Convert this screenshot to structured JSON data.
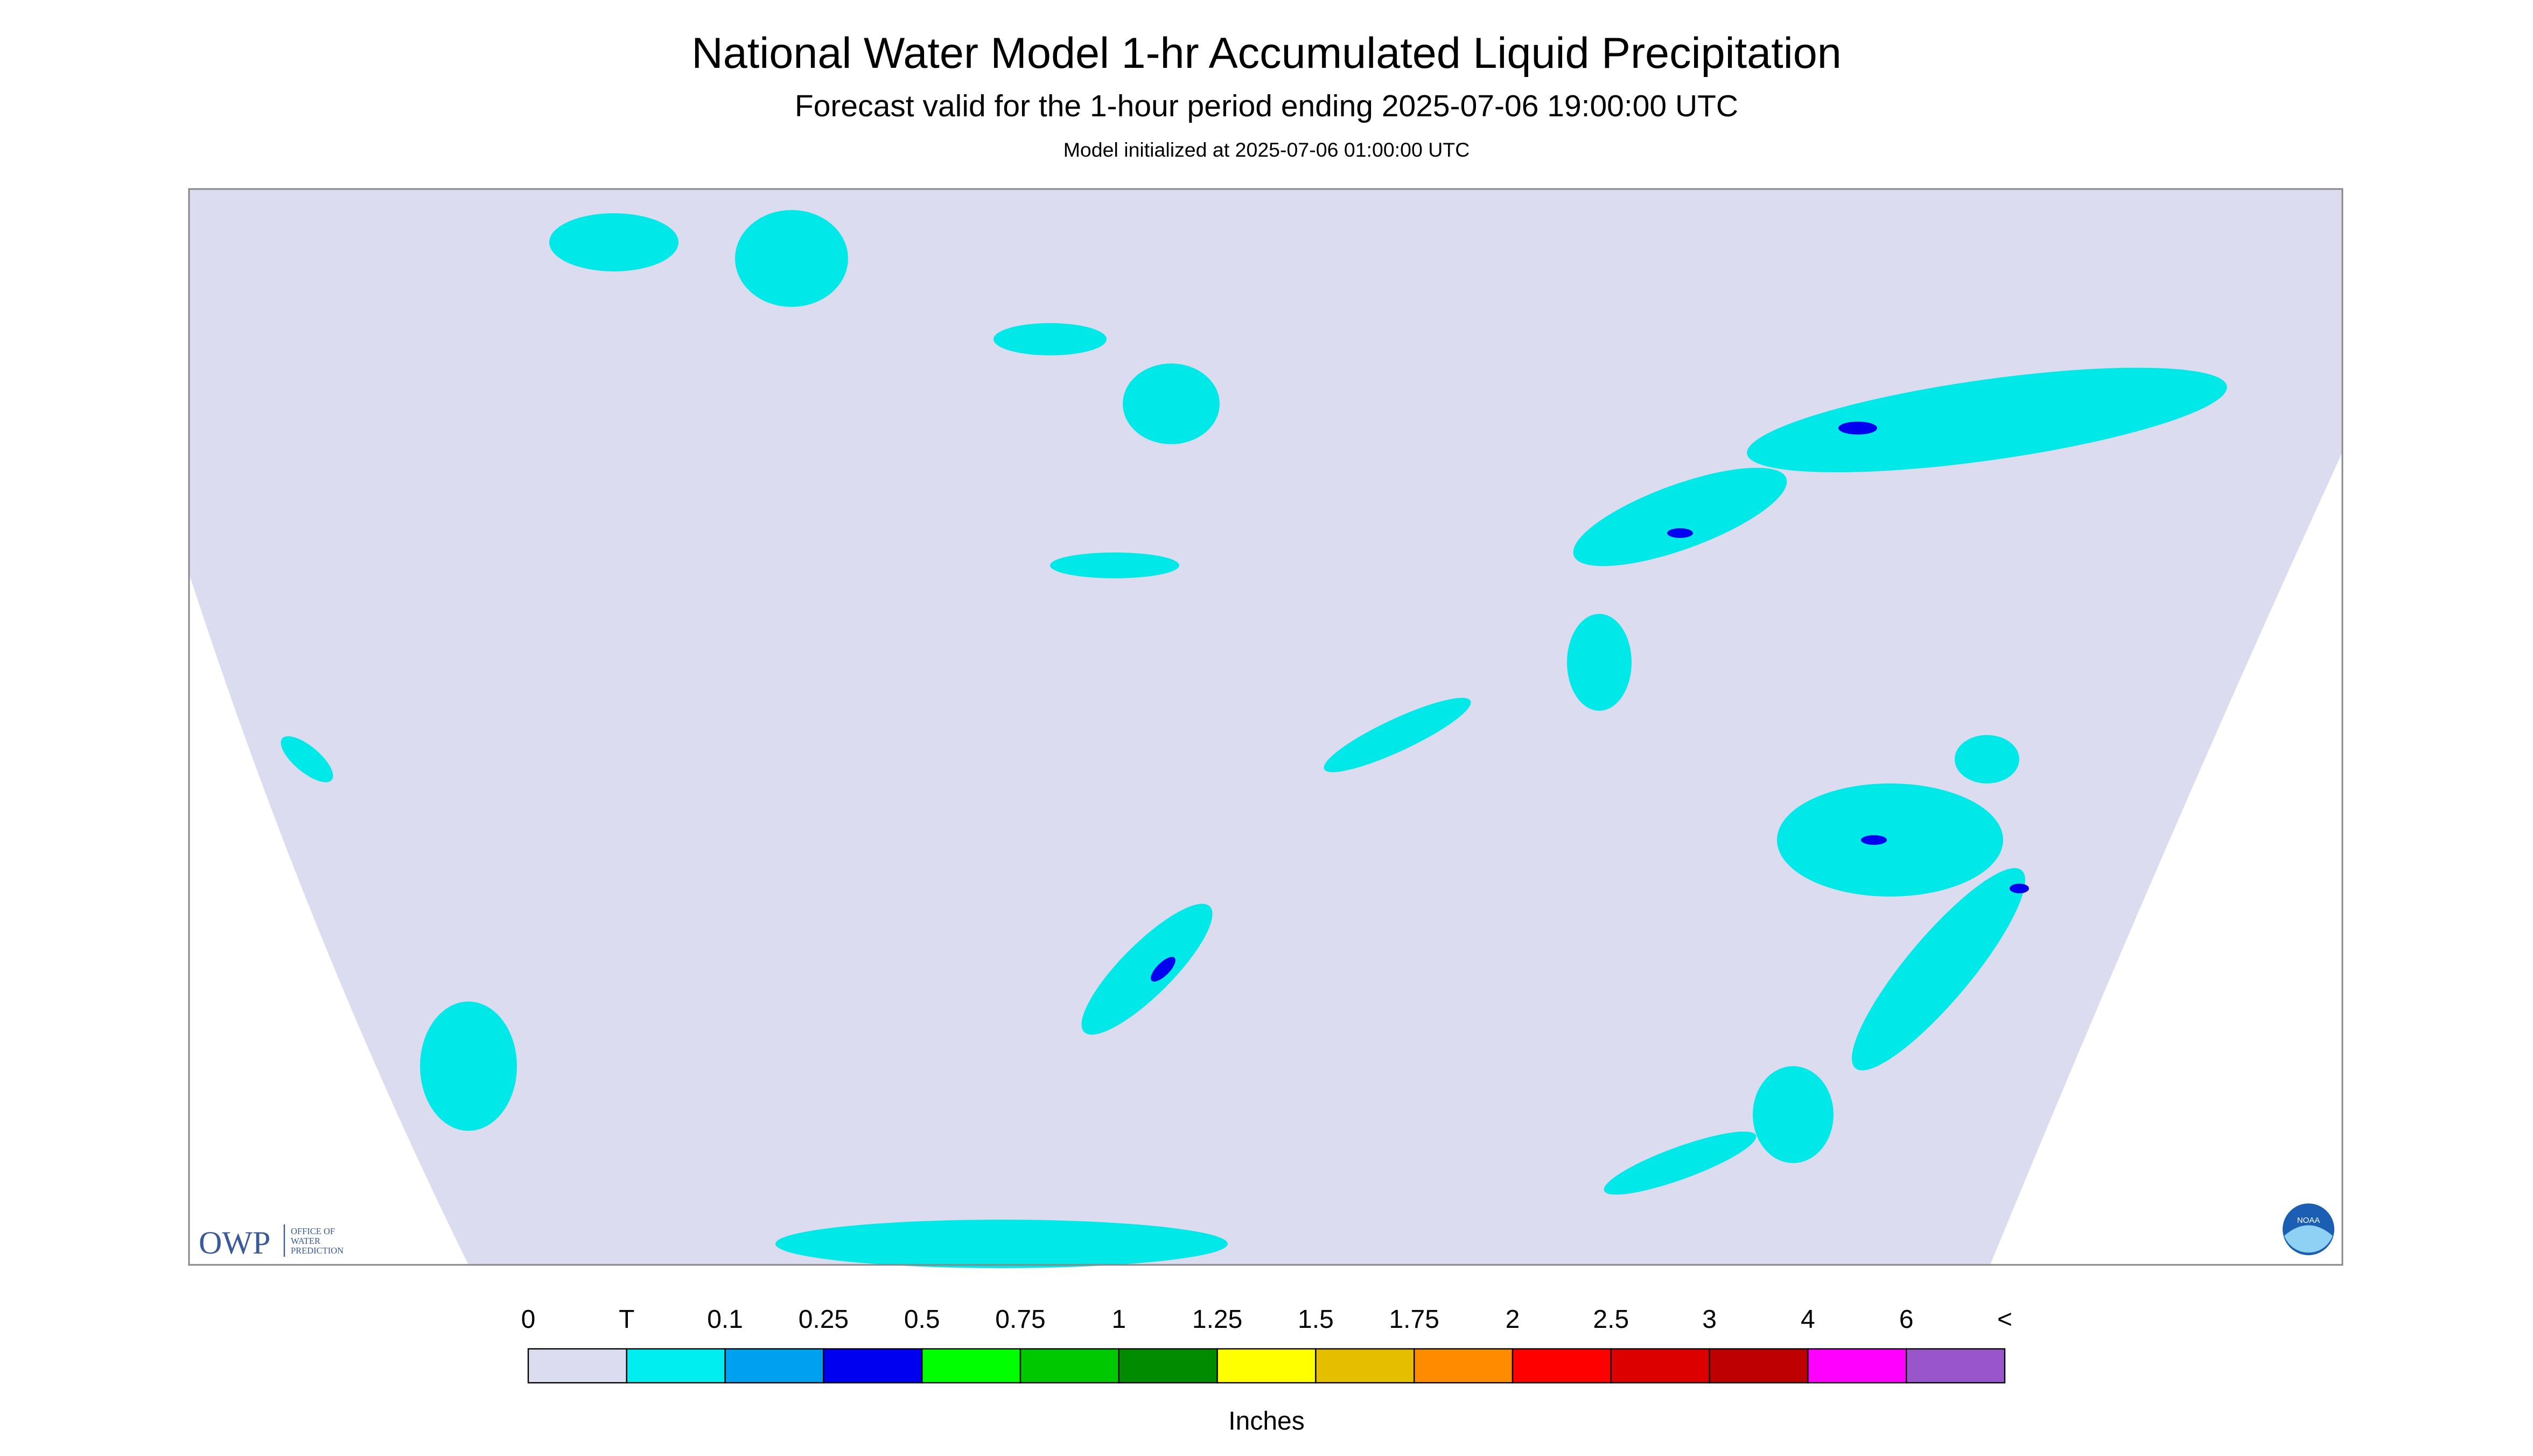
{
  "header": {
    "title": "National Water Model 1-hr Accumulated Liquid Precipitation",
    "subtitle": "Forecast valid for the 1-hour period ending 2025-07-06 19:00:00 UTC",
    "note": "Model initialized at 2025-07-06 01:00:00 UTC"
  },
  "logo": {
    "abbr": "OWP",
    "line1": "OFFICE OF",
    "line2": "WATER",
    "line3": "PREDICTION",
    "noaa": "NOAA"
  },
  "legend": {
    "labels": [
      "0",
      "T",
      "0.1",
      "0.25",
      "0.5",
      "0.75",
      "1",
      "1.25",
      "1.5",
      "1.75",
      "2",
      "2.5",
      "3",
      "4",
      "6",
      "<"
    ],
    "colors": [
      "#dcdcf0",
      "#00eeee",
      "#00a0f0",
      "#0000f0",
      "#00ff00",
      "#00c800",
      "#008c00",
      "#ffff00",
      "#e6be00",
      "#ff8c00",
      "#ff0000",
      "#dc0000",
      "#be0000",
      "#ff00ff",
      "#9955cc"
    ],
    "unit": "Inches"
  }
}
